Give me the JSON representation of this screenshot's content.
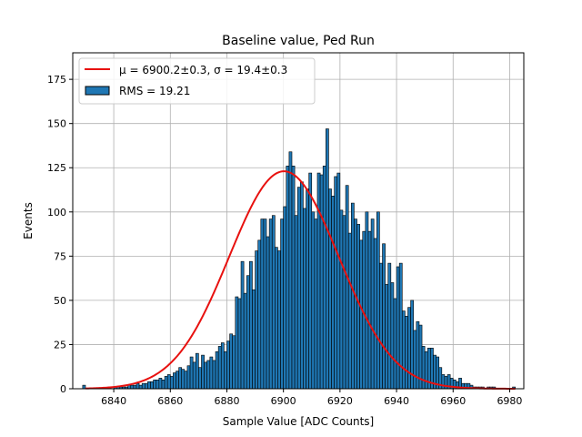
{
  "chart_data": {
    "type": "bar",
    "title": "Baseline value, Ped Run",
    "xlabel": "Sample Value [ADC Counts]",
    "ylabel": "Events",
    "xlim": [
      6825.5,
      6985
    ],
    "ylim": [
      0,
      190
    ],
    "x_ticks": [
      "6840",
      "6860",
      "6880",
      "6900",
      "6920",
      "6940",
      "6960",
      "6980"
    ],
    "y_ticks": [
      "0",
      "25",
      "50",
      "75",
      "100",
      "125",
      "150",
      "175"
    ],
    "grid": true,
    "legend_position": "top-left",
    "colors": {
      "bars": "#1f77b4",
      "bar_edge": "#000000",
      "fit": "#e8110f"
    },
    "histogram": {
      "name": "RMS = 19.21",
      "bin_width": 1,
      "x_start": 6829,
      "values": [
        2,
        0,
        0,
        0,
        0,
        0,
        0,
        0,
        0,
        1,
        0,
        1,
        1,
        1,
        1,
        1,
        2,
        2,
        2,
        3,
        2,
        3,
        3,
        4,
        4,
        5,
        5,
        6,
        5,
        7,
        8,
        7,
        9,
        10,
        12,
        11,
        10,
        13,
        18,
        15,
        20,
        12,
        19,
        15,
        16,
        18,
        16,
        21,
        24,
        26,
        21,
        27,
        31,
        30,
        52,
        51,
        72,
        54,
        64,
        72,
        56,
        78,
        84,
        96,
        96,
        86,
        96,
        98,
        80,
        78,
        96,
        103,
        126,
        134,
        126,
        98,
        114,
        117,
        102,
        113,
        122,
        100,
        96,
        122,
        121,
        126,
        147,
        113,
        109,
        120,
        122,
        101,
        98,
        115,
        88,
        105,
        96,
        93,
        84,
        89,
        100,
        89,
        96,
        85,
        100,
        71,
        82,
        59,
        71,
        60,
        51,
        69,
        71,
        44,
        41,
        46,
        50,
        33,
        38,
        36,
        24,
        21,
        23,
        23,
        19,
        18,
        12,
        8,
        7,
        8,
        6,
        5,
        4,
        6,
        3,
        3,
        3,
        2,
        1,
        1,
        1,
        1,
        0,
        1,
        1,
        1,
        0,
        0,
        0,
        0,
        0,
        0,
        1,
        0
      ]
    },
    "fit": {
      "name": "μ = 6900.2±0.3, σ = 19.4±0.3",
      "mu": 6900.2,
      "sigma": 19.4,
      "amplitude": 123
    }
  }
}
